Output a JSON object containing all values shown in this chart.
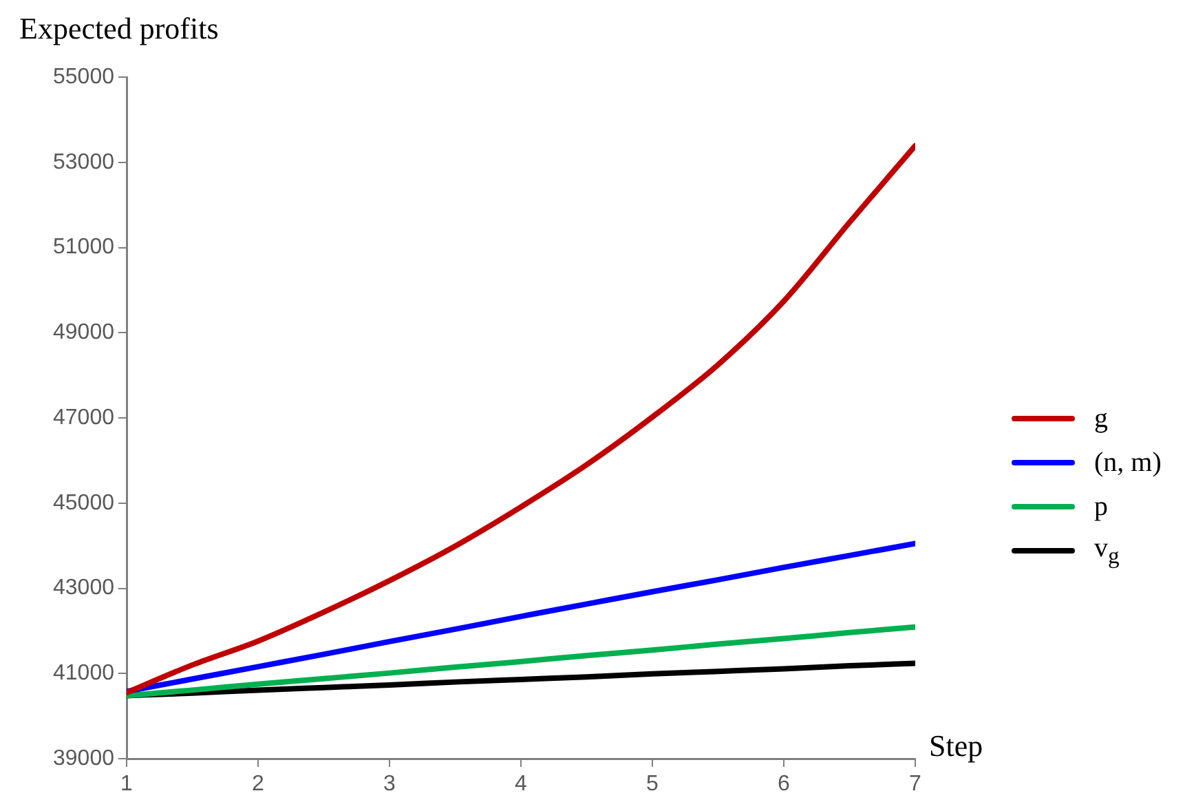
{
  "chart_data": {
    "type": "line",
    "ylabel": "Expected profits",
    "xlabel": "Step",
    "x": [
      1,
      1.5,
      2,
      2.5,
      3,
      3.5,
      4,
      4.5,
      5,
      5.5,
      6,
      6.5,
      7
    ],
    "series": [
      {
        "name": "g",
        "color": "#c00000",
        "values": [
          40550,
          41200,
          41760,
          42440,
          43180,
          43990,
          44910,
          45900,
          47020,
          48250,
          49740,
          51590,
          53390
        ]
      },
      {
        "name": "(n, m)",
        "color": "#0000ff",
        "values": [
          40580,
          40870,
          41160,
          41450,
          41750,
          42040,
          42340,
          42630,
          42920,
          43200,
          43490,
          43770,
          44050
        ]
      },
      {
        "name": "p",
        "color": "#00b050",
        "values": [
          40480,
          40610,
          40750,
          40880,
          41010,
          41150,
          41280,
          41420,
          41550,
          41690,
          41820,
          41960,
          42090
        ]
      },
      {
        "name": "v$_{g}$",
        "color": "#000000",
        "values": [
          40480,
          40540,
          40610,
          40670,
          40730,
          40800,
          40860,
          40920,
          40990,
          41050,
          41110,
          41180,
          41240
        ]
      }
    ],
    "xlim": [
      1,
      7
    ],
    "xticks": [
      1,
      2,
      3,
      4,
      5,
      6,
      7
    ],
    "ylim": [
      39000,
      55000
    ],
    "yticks": [
      39000,
      41000,
      43000,
      45000,
      47000,
      49000,
      51000,
      53000,
      55000
    ],
    "grid": false,
    "legend": "right",
    "marker": "none",
    "line_style": "solid"
  }
}
